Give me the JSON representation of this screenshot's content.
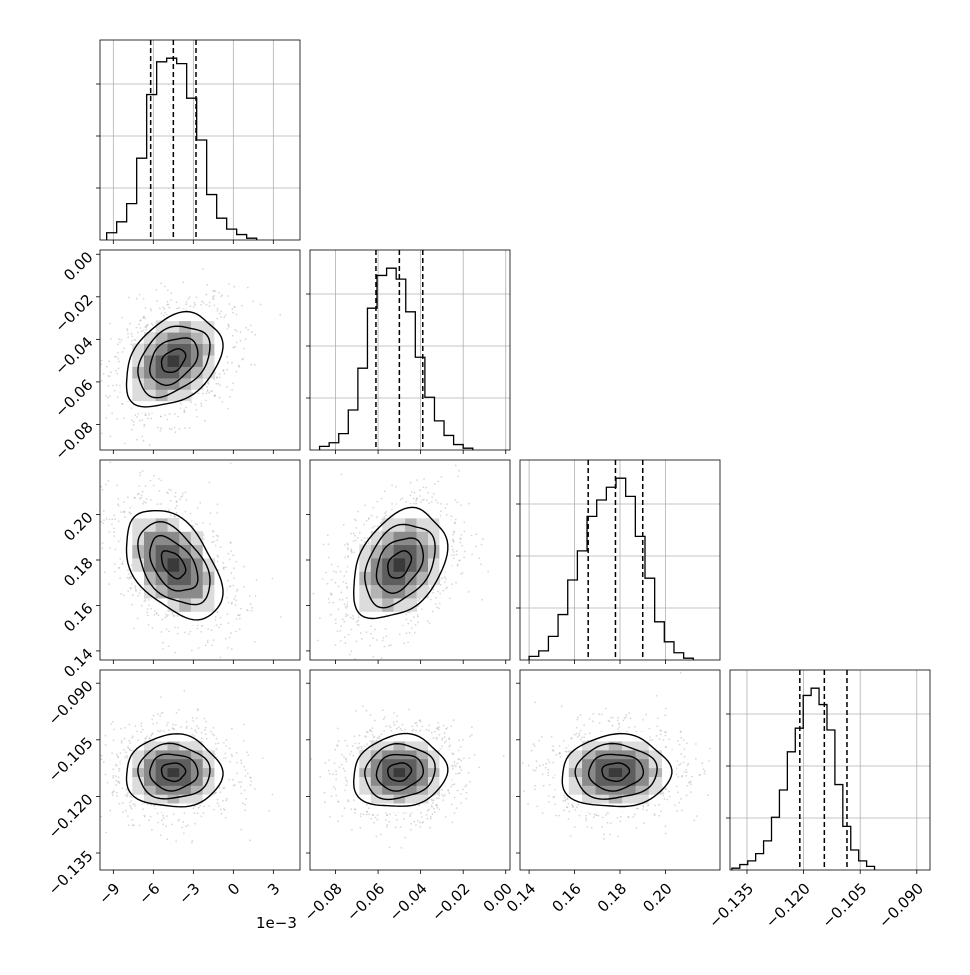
{
  "chart_data": {
    "type": "corner",
    "parameters": [
      {
        "range": [
          -10,
          5
        ],
        "ticks": [
          -9,
          -6,
          -3,
          0,
          3
        ],
        "tick_labels": [
          "−9",
          "−6",
          "−3",
          "0",
          "3"
        ],
        "offset_label": "1e−3",
        "mean": -4.5,
        "sd": 1.8,
        "quantiles": [
          -6.2,
          -4.5,
          -2.8
        ]
      },
      {
        "range": [
          -0.092,
          0.002
        ],
        "ticks": [
          -0.08,
          -0.06,
          -0.04,
          -0.02,
          0.0
        ],
        "tick_labels": [
          "−0.08",
          "−0.06",
          "−0.04",
          "−0.02",
          "0.00"
        ],
        "mean": -0.05,
        "sd": 0.011,
        "quantiles": [
          -0.061,
          -0.05,
          -0.039
        ]
      },
      {
        "range": [
          0.136,
          0.224
        ],
        "ticks": [
          0.14,
          0.16,
          0.18,
          0.2
        ],
        "tick_labels": [
          "0.14",
          "0.16",
          "0.18",
          "0.20"
        ],
        "mean": 0.178,
        "sd": 0.012,
        "quantiles": [
          0.166,
          0.178,
          0.19
        ]
      },
      {
        "range": [
          -0.1395,
          -0.0865
        ],
        "ticks": [
          -0.135,
          -0.12,
          -0.105,
          -0.09
        ],
        "tick_labels": [
          "−0.135",
          "−0.120",
          "−0.105",
          "−0.090"
        ],
        "mean": -0.1135,
        "sd": 0.0048,
        "quantiles": [
          -0.121,
          -0.1145,
          -0.1085
        ]
      }
    ],
    "histograms": [
      {
        "param": 0,
        "bin_start": -9.5,
        "bin_width": 0.75,
        "counts": [
          0.04,
          0.1,
          0.2,
          0.45,
          0.8,
          0.98,
          1.0,
          0.97,
          0.78,
          0.55,
          0.25,
          0.12,
          0.06,
          0.03,
          0.01
        ]
      },
      {
        "param": 1,
        "bin_start": -0.0875,
        "bin_width": 0.0045,
        "counts": [
          0.02,
          0.04,
          0.09,
          0.22,
          0.45,
          0.78,
          0.96,
          1.0,
          0.94,
          0.76,
          0.51,
          0.29,
          0.16,
          0.08,
          0.03,
          0.01
        ]
      },
      {
        "param": 2,
        "bin_start": 0.14,
        "bin_width": 0.00425,
        "counts": [
          0.02,
          0.05,
          0.13,
          0.25,
          0.44,
          0.6,
          0.79,
          0.88,
          0.95,
          1.0,
          0.9,
          0.68,
          0.45,
          0.21,
          0.1,
          0.04,
          0.01
        ]
      },
      {
        "param": 3,
        "bin_start": -0.139,
        "bin_width": 0.0021,
        "counts": [
          0.01,
          0.03,
          0.05,
          0.09,
          0.16,
          0.29,
          0.44,
          0.65,
          0.78,
          0.96,
          1.0,
          0.91,
          0.77,
          0.47,
          0.24,
          0.11,
          0.05,
          0.02
        ]
      }
    ],
    "correlations": [
      {
        "x": 0,
        "y": 1,
        "rho": 0.35
      },
      {
        "x": 0,
        "y": 2,
        "rho": -0.45
      },
      {
        "x": 1,
        "y": 2,
        "rho": 0.35
      },
      {
        "x": 0,
        "y": 3,
        "rho": 0.0
      },
      {
        "x": 1,
        "y": 3,
        "rho": 0.1
      },
      {
        "x": 2,
        "y": 3,
        "rho": 0.05
      }
    ],
    "contour_levels_sigma": [
      0.5,
      1.0,
      1.5,
      2.0
    ],
    "grid": true
  }
}
